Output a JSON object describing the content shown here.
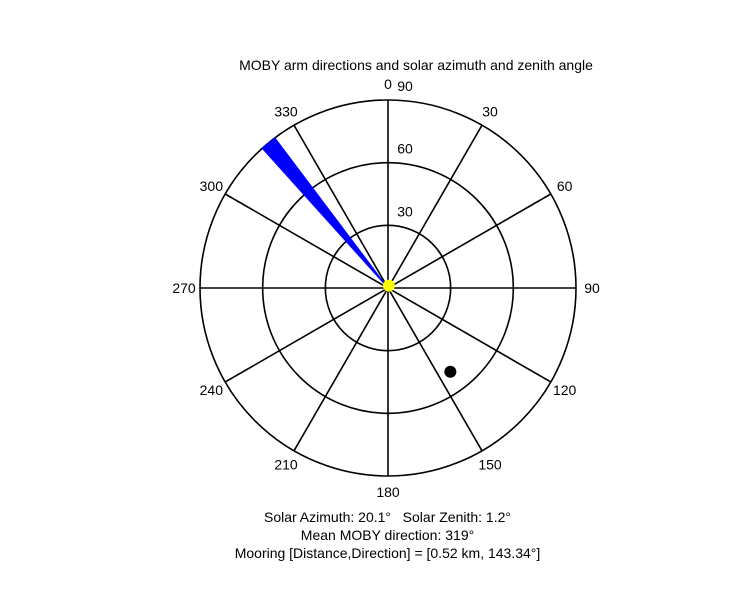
{
  "chart_data": {
    "type": "polar",
    "title": "MOBY arm directions and solar azimuth and zenith angle",
    "angular_tick_labels": [
      "0",
      "30",
      "60",
      "90",
      "120",
      "150",
      "180",
      "210",
      "240",
      "270",
      "300",
      "330"
    ],
    "angular_ticks_deg": [
      0,
      30,
      60,
      90,
      120,
      150,
      180,
      210,
      240,
      270,
      300,
      330
    ],
    "radial_tick_labels": [
      "30",
      "60",
      "90"
    ],
    "radial_ticks": [
      30,
      60,
      90
    ],
    "radial_max": 90,
    "radial_axis_note": "zenith angle, outer ring = 0, center = 90",
    "direction": "clockwise, 0 at top",
    "grid": true,
    "series": [
      {
        "kind": "wedge",
        "color": "#0000ff",
        "theta_deg_from": 318,
        "theta_deg_to": 323,
        "r_from": 90,
        "r_to": 0
      },
      {
        "kind": "point",
        "color": "#000000",
        "theta_deg": 143.34,
        "r": 40
      },
      {
        "kind": "point",
        "color": "#ffff00",
        "theta_deg": 20.1,
        "r": 88.8
      }
    ]
  },
  "captions": {
    "line1": "Solar Azimuth: 20.1°   Solar Zenith: 1.2°",
    "line2": "Mean MOBY direction: 319°",
    "line3": "Mooring [Distance,Direction] = [0.52 km, 143.34°]"
  }
}
